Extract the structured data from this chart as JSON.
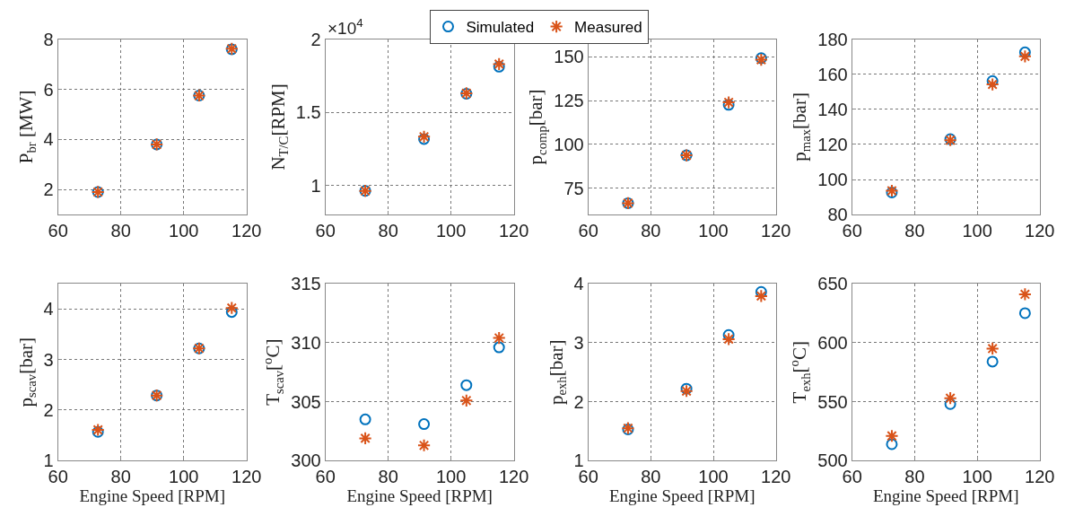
{
  "chart_data": [
    {
      "type": "scatter",
      "ylabel": "P$_{br}$ [MW]",
      "x": [
        72.7,
        91.4,
        104.9,
        115.3
      ],
      "xlim": [
        60,
        120
      ],
      "xticks": [
        60,
        80,
        100,
        120
      ],
      "ylim": [
        1,
        8
      ],
      "yticks": [
        2,
        4,
        6,
        8
      ],
      "grid": true,
      "legend": "top",
      "series": [
        {
          "name": "Simulated",
          "color": "#0072bd",
          "marker": "circle",
          "values": [
            1.9,
            3.8,
            5.75,
            7.6
          ]
        },
        {
          "name": "Measured",
          "color": "#d95319",
          "marker": "cross",
          "values": [
            1.9,
            3.8,
            5.75,
            7.62
          ]
        }
      ]
    },
    {
      "type": "scatter",
      "ylabel": "N$_{T/C}$[RPM]",
      "annotations": [
        "×10$^{4}$"
      ],
      "x": [
        72.7,
        91.4,
        104.9,
        115.3
      ],
      "xlim": [
        60,
        120
      ],
      "xticks": [
        60,
        80,
        100,
        120
      ],
      "ylim": [
        0.8,
        2
      ],
      "yticks": [
        1,
        1.5,
        2
      ],
      "grid": true,
      "series": [
        {
          "color": "#0072bd",
          "marker": "circle",
          "values": [
            0.962,
            1.317,
            1.627,
            1.812
          ]
        },
        {
          "color": "#d95319",
          "marker": "cross",
          "values": [
            0.962,
            1.333,
            1.63,
            1.83
          ]
        }
      ]
    },
    {
      "type": "scatter",
      "ylabel": "p$_{comp}$[bar]",
      "x": [
        72.7,
        91.4,
        104.9,
        115.3
      ],
      "xlim": [
        60,
        120
      ],
      "xticks": [
        60,
        80,
        100,
        120
      ],
      "ylim": [
        60,
        160
      ],
      "yticks": [
        75,
        100,
        125,
        150
      ],
      "grid": true,
      "series": [
        {
          "color": "#0072bd",
          "marker": "circle",
          "values": [
            66.5,
            93.8,
            122.6,
            149.2
          ]
        },
        {
          "color": "#d95319",
          "marker": "cross",
          "values": [
            66.5,
            93.8,
            124,
            148.3
          ]
        }
      ]
    },
    {
      "type": "scatter",
      "ylabel": "p$_{max}$[bar]",
      "x": [
        72.7,
        91.4,
        104.9,
        115.3
      ],
      "xlim": [
        60,
        120
      ],
      "xticks": [
        60,
        80,
        100,
        120
      ],
      "ylim": [
        80,
        180
      ],
      "yticks": [
        80,
        100,
        120,
        140,
        160,
        180
      ],
      "grid": true,
      "series": [
        {
          "color": "#0072bd",
          "marker": "circle",
          "values": [
            92.6,
            123,
            156.2,
            172.5
          ]
        },
        {
          "color": "#d95319",
          "marker": "cross",
          "values": [
            93.6,
            122.4,
            154.2,
            170.2
          ]
        }
      ]
    },
    {
      "type": "scatter",
      "xlabel": "Engine Speed [RPM]",
      "ylabel": "p$_{scav}$[bar]",
      "x": [
        72.7,
        91.4,
        104.9,
        115.3
      ],
      "xlim": [
        60,
        120
      ],
      "xticks": [
        60,
        80,
        100,
        120
      ],
      "ylim": [
        1,
        4.5
      ],
      "yticks": [
        1,
        2,
        3,
        4
      ],
      "grid": true,
      "series": [
        {
          "color": "#0072bd",
          "marker": "circle",
          "values": [
            1.57,
            2.29,
            3.22,
            3.94
          ]
        },
        {
          "color": "#d95319",
          "marker": "cross",
          "values": [
            1.61,
            2.29,
            3.22,
            4.02
          ]
        }
      ]
    },
    {
      "type": "scatter",
      "xlabel": "Engine Speed [RPM]",
      "ylabel": "T$_{scav}$[$^{o}$C]",
      "x": [
        72.7,
        91.4,
        104.9,
        115.3
      ],
      "xlim": [
        60,
        120
      ],
      "xticks": [
        60,
        80,
        100,
        120
      ],
      "ylim": [
        300,
        315
      ],
      "yticks": [
        300,
        305,
        310,
        315
      ],
      "grid": true,
      "series": [
        {
          "color": "#0072bd",
          "marker": "circle",
          "values": [
            303.5,
            303.1,
            306.4,
            309.6
          ]
        },
        {
          "color": "#d95319",
          "marker": "cross",
          "values": [
            301.9,
            301.3,
            305.1,
            310.4
          ]
        }
      ]
    },
    {
      "type": "scatter",
      "xlabel": "Engine Speed [RPM]",
      "ylabel": "p$_{exh}$[bar]",
      "x": [
        72.7,
        91.4,
        104.9,
        115.3
      ],
      "xlim": [
        60,
        120
      ],
      "xticks": [
        60,
        80,
        100,
        120
      ],
      "ylim": [
        1,
        4
      ],
      "yticks": [
        1,
        2,
        3,
        4
      ],
      "grid": true,
      "series": [
        {
          "color": "#0072bd",
          "marker": "circle",
          "values": [
            1.53,
            2.22,
            3.13,
            3.86
          ]
        },
        {
          "color": "#d95319",
          "marker": "cross",
          "values": [
            1.55,
            2.18,
            3.06,
            3.79
          ]
        }
      ]
    },
    {
      "type": "scatter",
      "xlabel": "Engine Speed [RPM]",
      "ylabel": "T$_{exh}$[$^{o}$C]",
      "x": [
        72.7,
        91.4,
        104.9,
        115.3
      ],
      "xlim": [
        60,
        120
      ],
      "xticks": [
        60,
        80,
        100,
        120
      ],
      "ylim": [
        500,
        650
      ],
      "yticks": [
        500,
        550,
        600,
        650
      ],
      "grid": true,
      "series": [
        {
          "color": "#0072bd",
          "marker": "circle",
          "values": [
            514,
            548,
            584,
            625
          ]
        },
        {
          "color": "#d95319",
          "marker": "cross",
          "values": [
            521,
            553,
            595,
            641
          ]
        }
      ]
    }
  ]
}
